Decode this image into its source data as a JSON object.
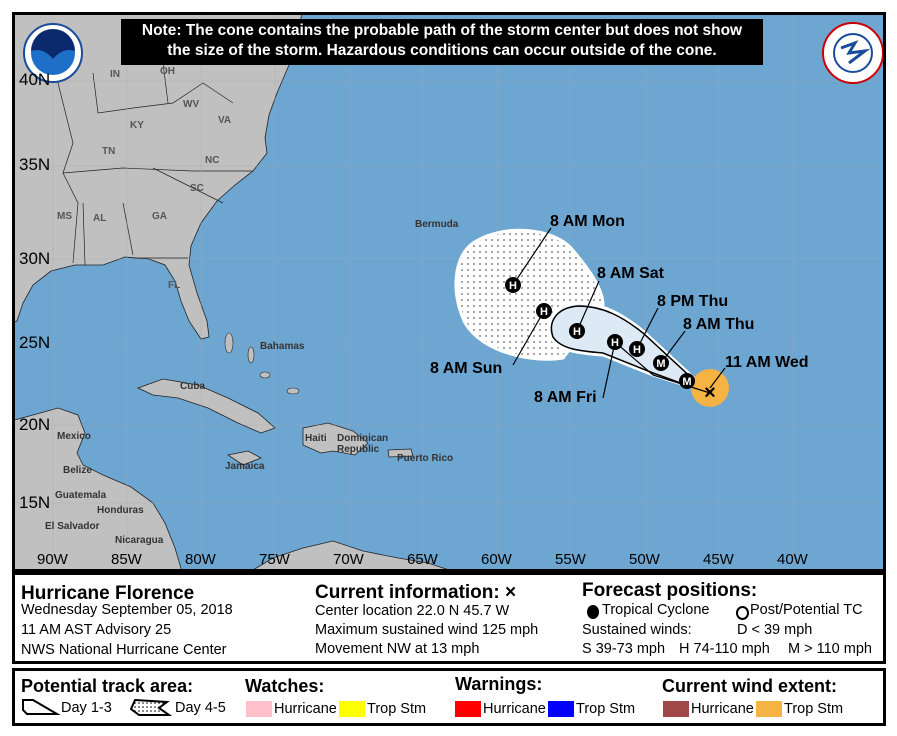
{
  "note": {
    "line1": "Note: The cone contains the probable path of the storm center but does not show",
    "line2": "the size of the storm. Hazardous conditions can occur outside of the cone."
  },
  "logos": {
    "noaa": "NOAA",
    "nws": "NATIONAL WEATHER SERVICE"
  },
  "map": {
    "lat_labels": [
      "40N",
      "35N",
      "30N",
      "25N",
      "20N",
      "15N"
    ],
    "lon_labels": [
      "90W",
      "85W",
      "80W",
      "75W",
      "70W",
      "65W",
      "60W",
      "55W",
      "50W",
      "45W",
      "40W"
    ],
    "place_labels": [
      "IN",
      "OH",
      "KY",
      "WV",
      "VA",
      "TN",
      "NC",
      "SC",
      "MS",
      "AL",
      "GA",
      "FL",
      "Bermuda",
      "Bahamas",
      "Cuba",
      "Mexico",
      "Belize",
      "Jamaica",
      "Haiti",
      "Dominican Republic",
      "Puerto Rico",
      "Guatemala",
      "Honduras",
      "El Salvador",
      "Nicaragua"
    ],
    "forecast_labels": [
      "11 AM Wed",
      "8 AM Thu",
      "8 PM Thu",
      "8 AM Fri",
      "8 AM Sat",
      "8 AM Sun",
      "8 AM Mon"
    ],
    "track_points": [
      {
        "time": "8 AM Thu",
        "symbol": "M"
      },
      {
        "time": "8 AM Thu",
        "symbol": "M"
      },
      {
        "time": "8 PM Thu",
        "symbol": "H"
      },
      {
        "time": "8 AM Fri",
        "symbol": "H"
      },
      {
        "time": "8 AM Sat",
        "symbol": "H"
      },
      {
        "time": "8 AM Sun",
        "symbol": "H"
      },
      {
        "time": "8 AM Mon",
        "symbol": "H"
      }
    ],
    "colors": {
      "ocean": "#6ea6d2",
      "land": "#c0c0c0",
      "cone_day13": "#dde9f4",
      "trop_stm_wind": "#f5b344"
    }
  },
  "info": {
    "storm_name": "Hurricane Florence",
    "date": "Wednesday September 05, 2018",
    "advisory": "11 AM AST Advisory 25",
    "center": "NWS National Hurricane Center",
    "current_title": "Current information: ×",
    "location": "Center location 22.0 N 45.7 W",
    "max_wind": "Maximum sustained wind 125 mph",
    "movement": "Movement NW at 13 mph",
    "forecast_title": "Forecast positions:",
    "tropical_cyclone": "Tropical Cyclone",
    "post_tc": "Post/Potential TC",
    "sustained": "Sustained winds:",
    "d_wind": "D < 39 mph",
    "s_wind": "S 39-73 mph",
    "h_wind": "H 74-110 mph",
    "m_wind": "M > 110 mph"
  },
  "legend": {
    "track_title": "Potential track area:",
    "day13": "Day 1-3",
    "day45": "Day 4-5",
    "watches_title": "Watches:",
    "warnings_title": "Warnings:",
    "wind_title": "Current wind extent:",
    "hurricane": "Hurricane",
    "trop_stm": "Trop Stm",
    "colors": {
      "watch_hurricane": "#ffc0cb",
      "watch_trop": "#ffff00",
      "warn_hurricane": "#ff0000",
      "warn_trop": "#0000ff",
      "wind_hurricane": "#a04848",
      "wind_trop": "#f5b344"
    }
  }
}
